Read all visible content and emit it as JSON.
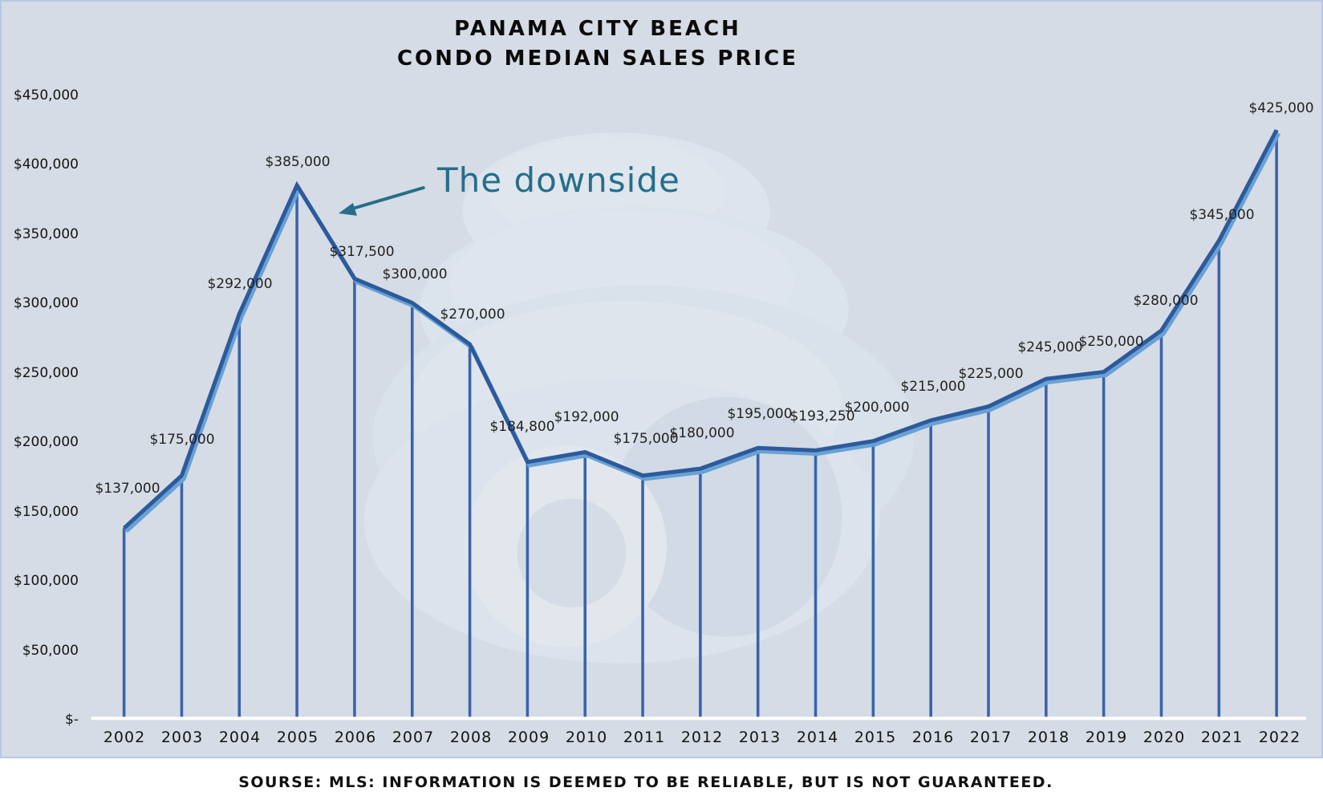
{
  "title": {
    "line1": "PANAMA CITY BEACH",
    "line2": "CONDO MEDIAN SALES PRICE"
  },
  "annotation": {
    "text": "The downside"
  },
  "source_note": "SOURSE: MLS: INFORMATION IS DEEMED TO BE RELIABLE, BUT IS NOT GUARANTEED.",
  "colors": {
    "panel_background": "#d6dce5",
    "panel_border": "#b6c8e8",
    "line_dark": "#2d5a9b",
    "line_light": "#69a1d6",
    "drop_line": "#3a64a9",
    "axis_line": "#ffffff",
    "annotation_teal": "#266e8a",
    "label_text": "#1c1c1c"
  },
  "chart_data": {
    "type": "line",
    "title": "PANAMA CITY BEACH CONDO MEDIAN SALES PRICE",
    "xlabel": "",
    "ylabel": "",
    "categories": [
      "2002",
      "2003",
      "2004",
      "2005",
      "2006",
      "2007",
      "2008",
      "2009",
      "2010",
      "2011",
      "2012",
      "2013",
      "2014",
      "2015",
      "2016",
      "2017",
      "2018",
      "2019",
      "2020",
      "2021",
      "2022"
    ],
    "values": [
      137000,
      175000,
      292000,
      385000,
      317500,
      300000,
      270000,
      184800,
      192000,
      175000,
      180000,
      195000,
      193250,
      200000,
      215000,
      225000,
      245000,
      250000,
      280000,
      345000,
      425000
    ],
    "point_labels": [
      "$137,000",
      "$175,000",
      "$292,000",
      "$385,000",
      "$317,500",
      "$300,000",
      "$270,000",
      "$184,800",
      "$192,000",
      "$175,000",
      "$180,000",
      "$195,000",
      "$193,250",
      "$200,000",
      "$215,000",
      "$225,000",
      "$245,000",
      "$250,000",
      "$280,000",
      "$345,000",
      "$425,000"
    ],
    "y_ticks": [
      {
        "value": 450000,
        "label": "$450,000"
      },
      {
        "value": 400000,
        "label": "$400,000"
      },
      {
        "value": 350000,
        "label": "$350,000"
      },
      {
        "value": 300000,
        "label": "$300,000"
      },
      {
        "value": 250000,
        "label": "$250,000"
      },
      {
        "value": 200000,
        "label": "$200,000"
      },
      {
        "value": 150000,
        "label": "$150,000"
      },
      {
        "value": 100000,
        "label": "$100,000"
      },
      {
        "value": 50000,
        "label": "$50,000"
      },
      {
        "value": 0,
        "label": "$-"
      }
    ],
    "ylim": [
      0,
      450000
    ],
    "grid": false,
    "legend": "none",
    "style_notes": "line with vertical drop lines to x-axis, light-blue shadow line under dark-blue line, seashell watermark"
  }
}
